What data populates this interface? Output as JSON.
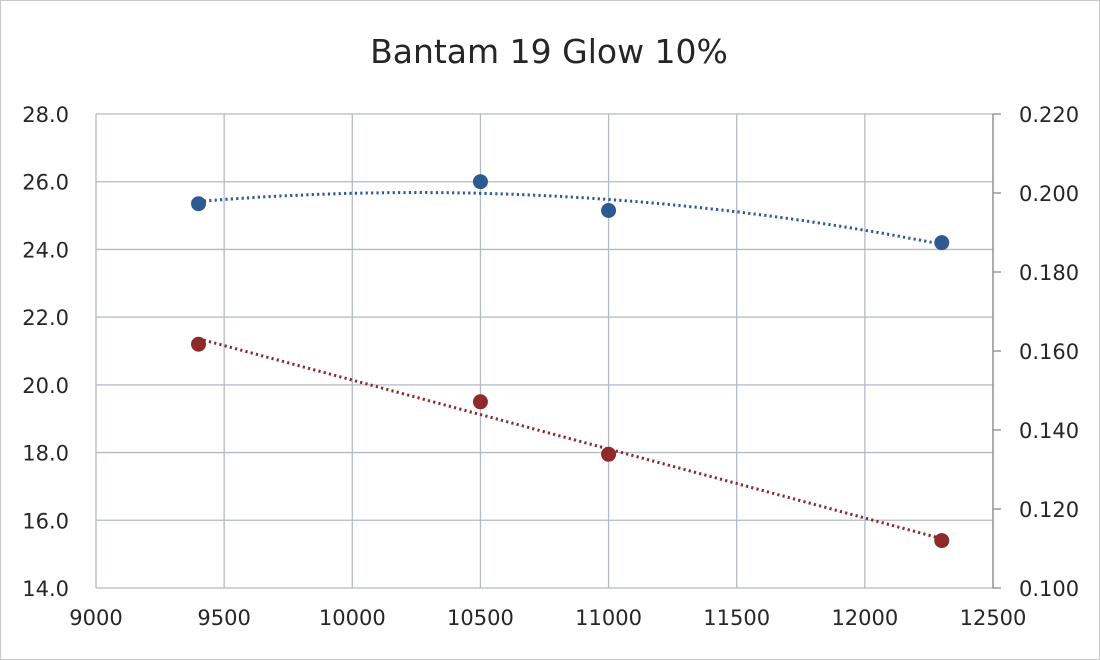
{
  "chart_data": {
    "type": "scatter",
    "title": "Bantam 19 Glow 10%",
    "xlabel": "",
    "ylabel": "",
    "y2label": "",
    "xlim": [
      9000,
      12500
    ],
    "ylim": [
      14.0,
      28.0
    ],
    "y2lim": [
      0.1,
      0.22
    ],
    "x_ticks": [
      "9000",
      "9500",
      "10000",
      "10500",
      "11000",
      "11500",
      "12000",
      "12500"
    ],
    "y_ticks": [
      "14.0",
      "16.0",
      "18.0",
      "20.0",
      "22.0",
      "24.0",
      "26.0",
      "28.0"
    ],
    "y2_ticks": [
      "0.100",
      "0.120",
      "0.140",
      "0.160",
      "0.180",
      "0.200",
      "0.220"
    ],
    "grid": true,
    "legend": "none",
    "series": [
      {
        "axis": "left",
        "color": "#2e5a94",
        "trendline": "polynomial-dotted",
        "x": [
          9400,
          10500,
          11000,
          12300
        ],
        "y": [
          25.35,
          26.0,
          25.15,
          24.2
        ]
      },
      {
        "axis": "left",
        "color": "#8e2a2a",
        "trendline": "linear-dotted",
        "x": [
          9400,
          10500,
          11000,
          12300
        ],
        "y": [
          21.2,
          19.5,
          17.95,
          15.4
        ]
      }
    ]
  }
}
